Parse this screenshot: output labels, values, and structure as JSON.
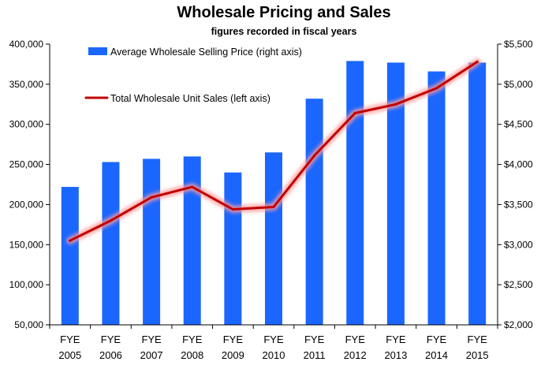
{
  "chart_data": {
    "type": "bar",
    "title": "Wholesale Pricing and Sales",
    "subtitle": "figures recorded in fiscal years",
    "categories": [
      [
        "FYE",
        "2005"
      ],
      [
        "FYE",
        "2006"
      ],
      [
        "FYE",
        "2007"
      ],
      [
        "FYE",
        "2008"
      ],
      [
        "FYE",
        "2009"
      ],
      [
        "FYE",
        "2010"
      ],
      [
        "FYE",
        "2011"
      ],
      [
        "FYE",
        "2012"
      ],
      [
        "FYE",
        "2013"
      ],
      [
        "FYE",
        "2014"
      ],
      [
        "FYE",
        "2015"
      ]
    ],
    "series": [
      {
        "name": "Average Wholesale Selling Price (right axis)",
        "type": "bar",
        "axis": "right",
        "color": "#1a66ff",
        "values": [
          3720,
          4030,
          4070,
          4100,
          3900,
          4150,
          4820,
          5290,
          5270,
          5160,
          5270
        ]
      },
      {
        "name": "Total Wholesale Unit Sales (left axis)",
        "type": "line",
        "axis": "left",
        "color": "#c00000",
        "glow": "#ff9999",
        "values": [
          155000,
          180000,
          209000,
          222000,
          194000,
          197000,
          261000,
          314000,
          325000,
          345000,
          378000
        ]
      }
    ],
    "left_axis": {
      "min": 50000,
      "max": 400000,
      "ticks": [
        50000,
        100000,
        150000,
        200000,
        250000,
        300000,
        350000,
        400000
      ],
      "tick_labels": [
        "50,000",
        "100,000",
        "150,000",
        "200,000",
        "250,000",
        "300,000",
        "350,000",
        "400,000"
      ]
    },
    "right_axis": {
      "min": 2000,
      "max": 5500,
      "ticks": [
        2000,
        2500,
        3000,
        3500,
        4000,
        4500,
        5000,
        5500
      ],
      "tick_labels": [
        "$2,000",
        "$2,500",
        "$3,000",
        "$3,500",
        "$4,000",
        "$4,500",
        "$5,000",
        "$5,500"
      ]
    },
    "grid": false,
    "legend_position": "top-left"
  }
}
